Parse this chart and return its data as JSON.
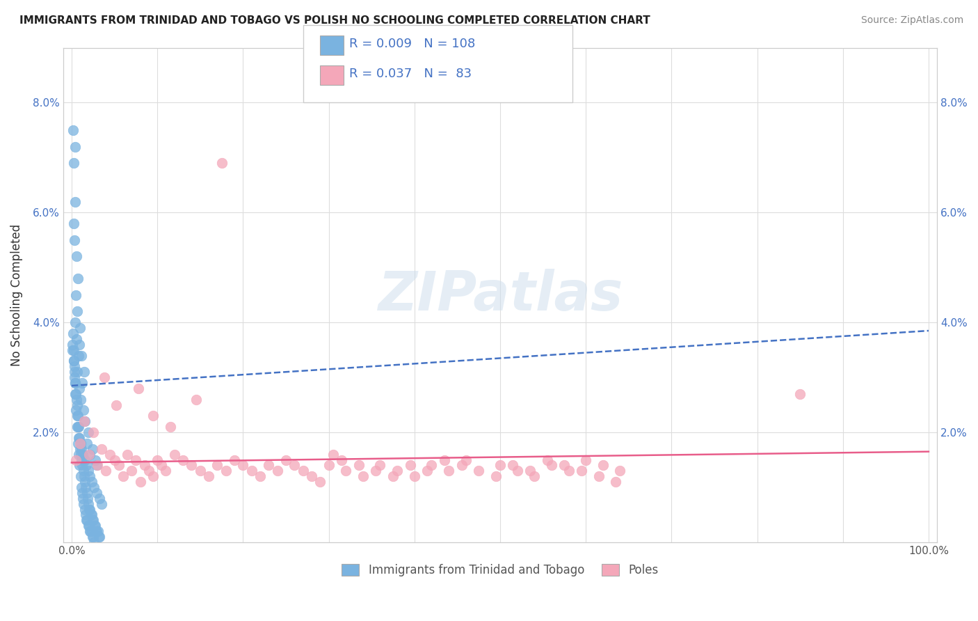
{
  "title": "IMMIGRANTS FROM TRINIDAD AND TOBAGO VS POLISH NO SCHOOLING COMPLETED CORRELATION CHART",
  "source": "Source: ZipAtlas.com",
  "ylabel": "No Schooling Completed",
  "legend_blue_label": "Immigrants from Trinidad and Tobago",
  "legend_pink_label": "Poles",
  "blue_R": "0.009",
  "blue_N": "108",
  "pink_R": "0.037",
  "pink_N": "83",
  "blue_color": "#7ab3e0",
  "pink_color": "#f4a7b9",
  "blue_trend_color": "#4472c4",
  "pink_trend_color": "#e85d8a",
  "blue_trend_intercept": 2.85,
  "blue_trend_slope": 0.01,
  "pink_trend_intercept": 1.45,
  "pink_trend_slope": 0.002,
  "xlim": [
    -1,
    101
  ],
  "ylim": [
    0,
    9.0
  ],
  "x_ticks": [
    0,
    10,
    20,
    30,
    40,
    50,
    60,
    70,
    80,
    90,
    100
  ],
  "x_tick_labels": [
    "0.0%",
    "",
    "",
    "",
    "",
    "",
    "",
    "",
    "",
    "",
    "100.0%"
  ],
  "y_ticks": [
    0,
    2,
    4,
    6,
    8
  ],
  "y_tick_labels": [
    "",
    "2.0%",
    "4.0%",
    "6.0%",
    "8.0%"
  ],
  "watermark_text": "ZIPatlas",
  "blue_x": [
    0.18,
    0.38,
    0.22,
    0.45,
    0.28,
    0.32,
    0.55,
    0.75,
    0.48,
    0.68,
    0.95,
    0.88,
    1.15,
    1.45,
    1.25,
    0.38,
    0.58,
    0.78,
    0.68,
    0.88,
    1.05,
    1.38,
    1.58,
    1.95,
    1.75,
    2.45,
    2.15,
    2.75,
    2.95,
    0.12,
    0.22,
    0.32,
    0.42,
    0.52,
    0.62,
    0.72,
    0.82,
    0.92,
    1.02,
    1.12,
    1.32,
    1.52,
    1.72,
    1.92,
    2.12,
    2.32,
    2.62,
    2.92,
    3.22,
    3.52,
    0.15,
    0.25,
    0.35,
    0.45,
    0.55,
    0.65,
    0.75,
    0.85,
    0.95,
    1.05,
    1.15,
    1.25,
    1.35,
    1.45,
    1.55,
    1.65,
    1.75,
    1.85,
    1.95,
    2.05,
    2.15,
    2.25,
    2.35,
    2.45,
    2.55,
    2.65,
    2.75,
    2.85,
    2.95,
    3.05,
    3.15,
    3.25,
    0.12,
    0.22,
    0.32,
    0.42,
    0.52,
    0.62,
    0.72,
    0.82,
    0.92,
    1.02,
    1.12,
    1.22,
    1.32,
    1.42,
    1.52,
    1.62,
    1.72,
    1.82,
    1.92,
    2.02,
    2.12,
    2.22,
    2.32,
    2.42,
    2.52,
    2.62
  ],
  "blue_y": [
    7.5,
    7.2,
    6.9,
    6.2,
    5.8,
    5.5,
    5.2,
    4.8,
    4.5,
    4.2,
    3.9,
    3.6,
    3.4,
    3.1,
    2.9,
    4.0,
    3.7,
    3.4,
    3.1,
    2.8,
    2.6,
    2.4,
    2.2,
    2.0,
    1.8,
    1.7,
    1.6,
    1.5,
    1.4,
    3.5,
    3.3,
    3.1,
    2.9,
    2.7,
    2.5,
    2.3,
    2.1,
    1.9,
    1.8,
    1.7,
    1.6,
    1.5,
    1.4,
    1.3,
    1.2,
    1.1,
    1.0,
    0.9,
    0.8,
    0.7,
    3.8,
    3.5,
    3.2,
    2.9,
    2.6,
    2.3,
    2.1,
    1.9,
    1.7,
    1.6,
    1.5,
    1.4,
    1.3,
    1.2,
    1.1,
    1.0,
    0.9,
    0.8,
    0.7,
    0.6,
    0.6,
    0.5,
    0.5,
    0.4,
    0.4,
    0.3,
    0.3,
    0.2,
    0.2,
    0.2,
    0.1,
    0.1,
    3.6,
    3.3,
    3.0,
    2.7,
    2.4,
    2.1,
    1.8,
    1.6,
    1.4,
    1.2,
    1.0,
    0.9,
    0.8,
    0.7,
    0.6,
    0.5,
    0.4,
    0.4,
    0.3,
    0.3,
    0.2,
    0.2,
    0.2,
    0.1,
    0.1,
    0.0
  ],
  "pink_x": [
    0.5,
    1.0,
    1.5,
    2.0,
    2.5,
    3.0,
    3.5,
    4.0,
    4.5,
    5.0,
    5.5,
    6.0,
    6.5,
    7.0,
    7.5,
    8.0,
    8.5,
    9.0,
    9.5,
    10.0,
    10.5,
    11.0,
    12.0,
    13.0,
    14.0,
    15.0,
    16.0,
    17.0,
    18.0,
    19.0,
    20.0,
    21.0,
    22.0,
    23.0,
    24.0,
    25.0,
    26.0,
    27.0,
    28.0,
    29.0,
    30.0,
    32.0,
    34.0,
    36.0,
    38.0,
    40.0,
    42.0,
    44.0,
    46.0,
    50.0,
    52.0,
    54.0,
    56.0,
    58.0,
    60.0,
    62.0,
    64.0,
    30.5,
    31.5,
    33.5,
    35.5,
    37.5,
    39.5,
    41.5,
    43.5,
    45.5,
    47.5,
    49.5,
    51.5,
    53.5,
    55.5,
    57.5,
    59.5,
    61.5,
    63.5,
    3.8,
    5.2,
    7.8,
    9.5,
    11.5,
    14.5,
    85.0,
    17.5
  ],
  "pink_y": [
    1.5,
    1.8,
    2.2,
    1.6,
    2.0,
    1.4,
    1.7,
    1.3,
    1.6,
    1.5,
    1.4,
    1.2,
    1.6,
    1.3,
    1.5,
    1.1,
    1.4,
    1.3,
    1.2,
    1.5,
    1.4,
    1.3,
    1.6,
    1.5,
    1.4,
    1.3,
    1.2,
    1.4,
    1.3,
    1.5,
    1.4,
    1.3,
    1.2,
    1.4,
    1.3,
    1.5,
    1.4,
    1.3,
    1.2,
    1.1,
    1.4,
    1.3,
    1.2,
    1.4,
    1.3,
    1.2,
    1.4,
    1.3,
    1.5,
    1.4,
    1.3,
    1.2,
    1.4,
    1.3,
    1.5,
    1.4,
    1.3,
    1.6,
    1.5,
    1.4,
    1.3,
    1.2,
    1.4,
    1.3,
    1.5,
    1.4,
    1.3,
    1.2,
    1.4,
    1.3,
    1.5,
    1.4,
    1.3,
    1.2,
    1.1,
    3.0,
    2.5,
    2.8,
    2.3,
    2.1,
    2.6,
    2.7,
    6.9
  ]
}
